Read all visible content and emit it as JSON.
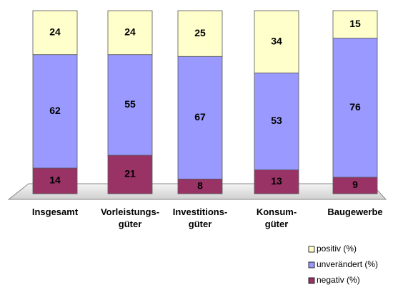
{
  "chart_data": {
    "type": "stacked_bar",
    "categories": [
      [
        "Insgesamt"
      ],
      [
        "Vorleistungs-",
        "güter"
      ],
      [
        "Investitions-",
        "güter"
      ],
      [
        "Konsum-",
        "güter"
      ],
      [
        "Baugewerbe"
      ]
    ],
    "series": [
      {
        "name": "negativ (%)",
        "color": "#993366",
        "values": [
          14,
          21,
          8,
          13,
          9
        ]
      },
      {
        "name": "unverändert (%)",
        "color": "#9999ff",
        "values": [
          62,
          55,
          67,
          53,
          76
        ]
      },
      {
        "name": "positiv (%)",
        "color": "#ffffcc",
        "values": [
          24,
          24,
          25,
          34,
          15
        ]
      }
    ]
  }
}
